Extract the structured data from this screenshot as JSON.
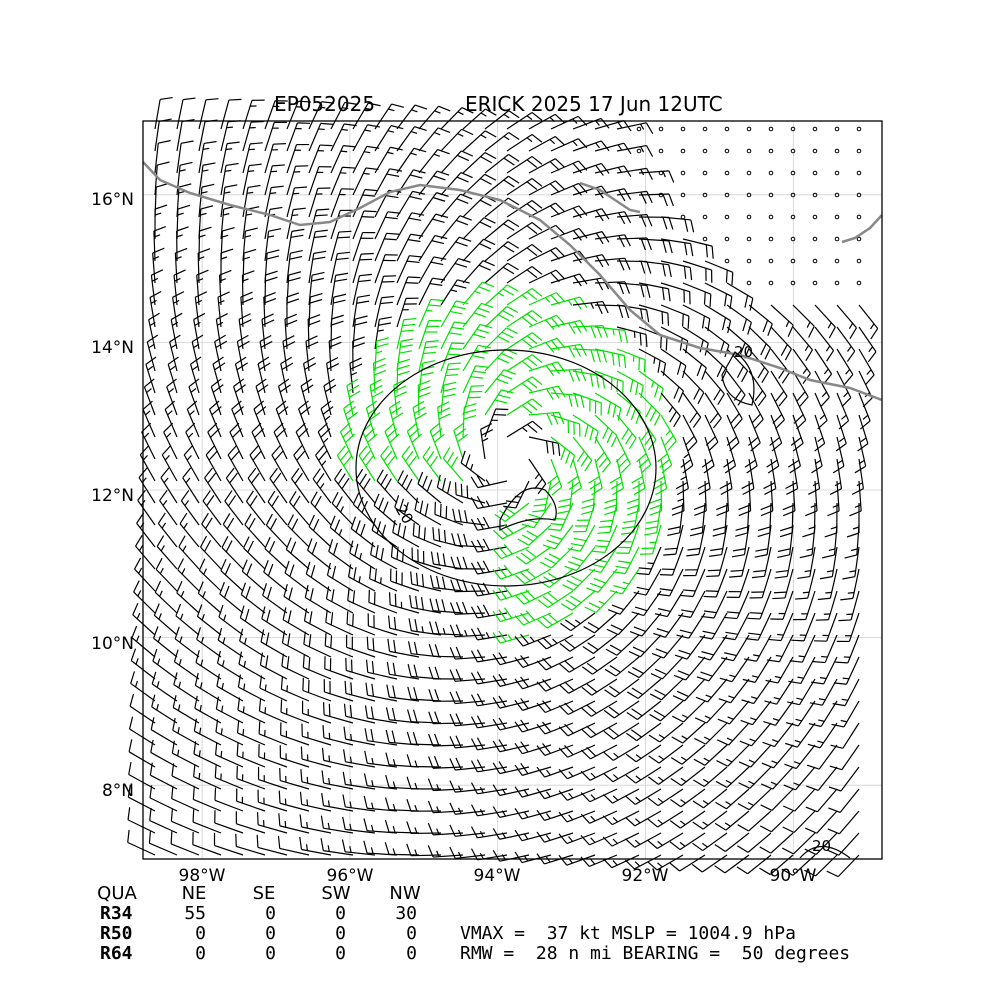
{
  "title": {
    "storm_id": "EP052025",
    "storm_time": "ERICK 2025 17 Jun 12UTC"
  },
  "axes": {
    "lat_ticks": [
      "16°N",
      "14°N",
      "12°N",
      "10°N",
      "8°N"
    ],
    "lon_ticks": [
      "98°W",
      "96°W",
      "94°W",
      "92°W",
      "90°W"
    ],
    "lat_range": [
      7.0,
      17.0
    ],
    "lon_range": [
      -98.8,
      -88.8
    ]
  },
  "contours": {
    "labels": [
      "20",
      "20",
      "20"
    ]
  },
  "wind_radii": {
    "header": [
      "QUA",
      "NE",
      "SE",
      "SW",
      "NW"
    ],
    "rows": [
      {
        "label": "R34",
        "NE": "55",
        "SE": "0",
        "SW": "0",
        "NW": "30"
      },
      {
        "label": "R50",
        "NE": "0",
        "SE": "0",
        "SW": "0",
        "NW": "0"
      },
      {
        "label": "R64",
        "NE": "0",
        "SE": "0",
        "SW": "0",
        "NW": "0"
      }
    ]
  },
  "summary": {
    "line1": "VMAX =  37 kt MSLP = 1004.9 hPa",
    "line2": "RMW =  28 n mi BEARING =  50 degrees"
  },
  "colors": {
    "coast": "#888888",
    "gale": "#00e000",
    "storm": "#e8a000",
    "barb": "#000000",
    "grid": "#d0d0d0"
  }
}
